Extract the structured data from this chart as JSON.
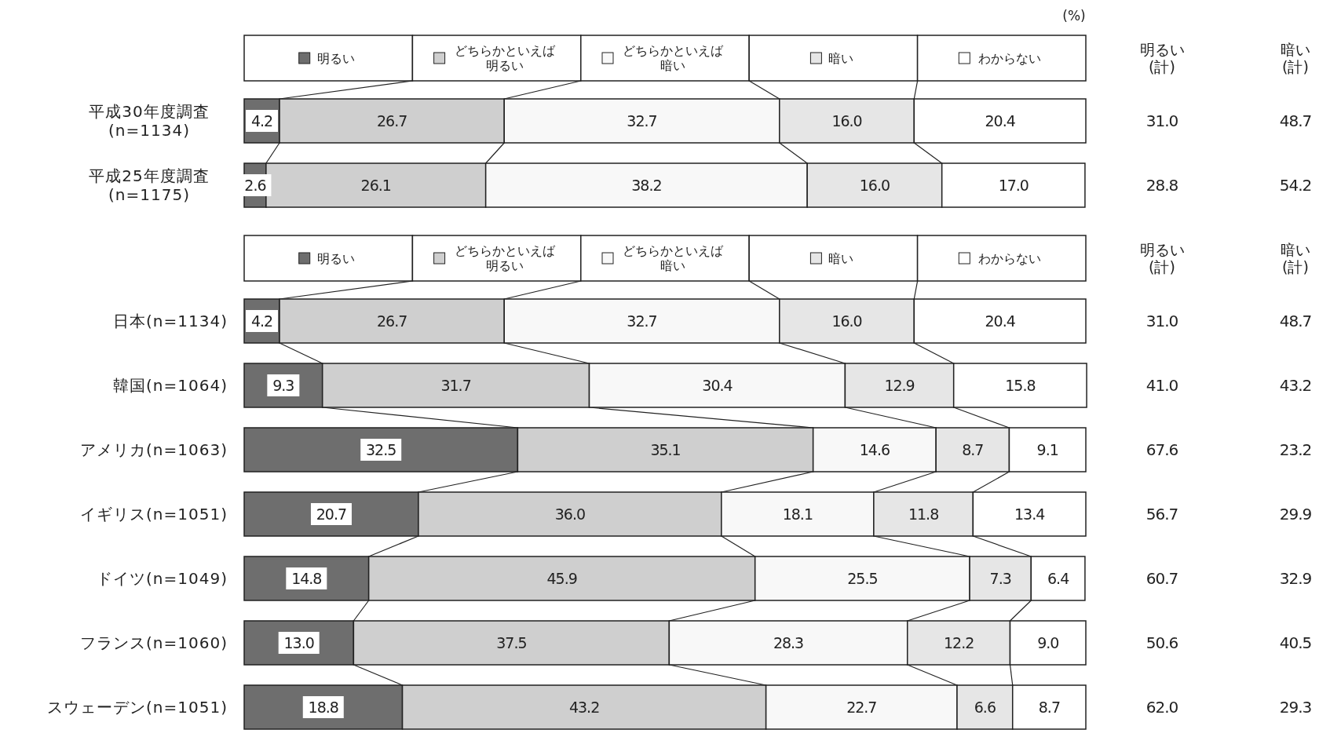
{
  "chart_data": [
    {
      "type": "bar",
      "orientation": "horizontal",
      "stacked": true,
      "legend": "top",
      "xlim": [
        0,
        100
      ],
      "tick_labels": "y",
      "categories": [
        "平成30年度調査\n(n=1134)",
        "平成25年度調査\n(n=1175)"
      ],
      "series": [
        {
          "name": "明るい",
          "color": "#6e6e6e",
          "values": [
            4.2,
            2.6
          ],
          "value_labels": [
            "4.2",
            "2.6"
          ]
        },
        {
          "name": "どちらかといえば明るい",
          "color": "#cfcfcf",
          "values": [
            26.7,
            26.1
          ],
          "value_labels": [
            "26.7",
            "26.1"
          ]
        },
        {
          "name": "どちらかといえば暗い",
          "color": "#f8f8f8",
          "values": [
            32.7,
            38.2
          ],
          "value_labels": [
            "32.7",
            "38.2"
          ]
        },
        {
          "name": "暗い",
          "color": "#e6e6e6",
          "values": [
            16.0,
            16.0
          ],
          "value_labels": [
            "16.0",
            "16.0"
          ]
        },
        {
          "name": "わからない",
          "color": "#ffffff",
          "values": [
            20.4,
            17.0
          ],
          "value_labels": [
            "20.4",
            "17.0"
          ]
        }
      ],
      "annotations": [
        "(%)",
        "明るい\n(計)",
        "暗い\n(計)",
        "31.0",
        "48.7",
        "28.8",
        "54.2"
      ]
    },
    {
      "type": "bar",
      "orientation": "horizontal",
      "stacked": true,
      "legend": "top",
      "xlim": [
        0,
        100
      ],
      "tick_labels": "y",
      "categories": [
        "日本(n=1134)",
        "韓国(n=1064)",
        "アメリカ(n=1063)",
        "イギリス(n=1051)",
        "ドイツ(n=1049)",
        "フランス(n=1060)",
        "スウェーデン(n=1051)"
      ],
      "series": [
        {
          "name": "明るい",
          "color": "#6e6e6e",
          "values": [
            4.2,
            9.3,
            32.5,
            20.7,
            14.8,
            13.0,
            18.8
          ],
          "value_labels": [
            "4.2",
            "9.3",
            "32.5",
            "20.7",
            "14.8",
            "13.0",
            "18.8"
          ]
        },
        {
          "name": "どちらかといえば明るい",
          "color": "#cfcfcf",
          "values": [
            26.7,
            31.7,
            35.1,
            36.0,
            45.9,
            37.5,
            43.2
          ],
          "value_labels": [
            "26.7",
            "31.7",
            "35.1",
            "36.0",
            "45.9",
            "37.5",
            "43.2"
          ]
        },
        {
          "name": "どちらかといえば暗い",
          "color": "#f8f8f8",
          "values": [
            32.7,
            30.4,
            14.6,
            18.1,
            25.5,
            28.3,
            22.7
          ],
          "value_labels": [
            "32.7",
            "30.4",
            "14.6",
            "18.1",
            "25.5",
            "28.3",
            "22.7"
          ]
        },
        {
          "name": "暗い",
          "color": "#e6e6e6",
          "values": [
            16.0,
            12.9,
            8.7,
            11.8,
            7.3,
            12.2,
            6.6
          ],
          "value_labels": [
            "16.0",
            "12.9",
            "8.7",
            "11.8",
            "7.3",
            "12.2",
            "6.6"
          ]
        },
        {
          "name": "わからない",
          "color": "#ffffff",
          "values": [
            20.4,
            15.8,
            9.1,
            13.4,
            6.4,
            9.0,
            8.7
          ],
          "value_labels": [
            "20.4",
            "15.8",
            "9.1",
            "13.4",
            "6.4",
            "9.0",
            "8.7"
          ]
        }
      ],
      "annotations": [
        "明るい\n(計)",
        "暗い\n(計)",
        "31.0",
        "48.7",
        "41.0",
        "43.2",
        "67.6",
        "23.2",
        "56.7",
        "29.9",
        "60.7",
        "32.9",
        "50.6",
        "40.5",
        "62.0",
        "29.3"
      ]
    }
  ]
}
